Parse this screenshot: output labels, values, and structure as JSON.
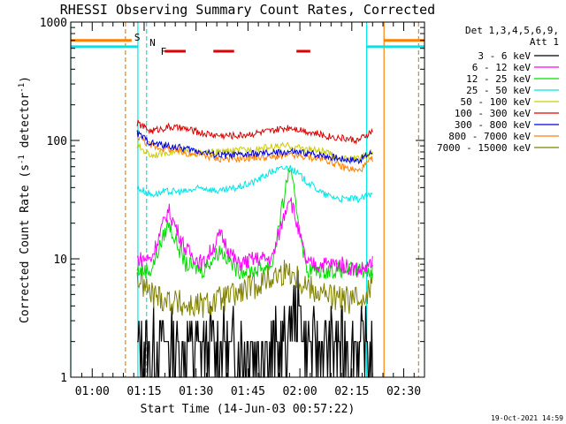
{
  "chart_data": {
    "type": "line",
    "title": "RHESSI Observing Summary Count Rates, Corrected",
    "xlabel": "Start Time (14-Jun-03 00:57:22)",
    "ylabel": "Corrected Count Rate (s",
    "ylabel_sup1": "-1",
    "ylabel_mid": " detector",
    "ylabel_sup2": "-1",
    "ylabel_end": ")",
    "y_scale": "log",
    "ylim": [
      1,
      1000
    ],
    "xlim_minutes_after_0057": [
      -3.2,
      99
    ],
    "x_tick_labels": [
      "01:00",
      "01:15",
      "01:30",
      "01:45",
      "02:00",
      "02:15",
      "02:30"
    ],
    "x_tick_minutes": [
      3,
      18,
      33,
      48,
      63,
      78,
      93
    ],
    "y_tick_labels": [
      "1",
      "10",
      "100",
      "1000"
    ],
    "y_tick_values": [
      1,
      10,
      100,
      1000
    ],
    "legend_title": [
      "Det 1,3,4,5,6,9,",
      "Att 1"
    ],
    "legend_placement": "right",
    "series": [
      {
        "name": "3 - 6 keV",
        "color": "#000000",
        "profile": "low"
      },
      {
        "name": "6 - 12 keV",
        "color": "#ff00ff",
        "profile": "flare"
      },
      {
        "name": "12 - 25 keV",
        "color": "#00dd00",
        "profile": "flare"
      },
      {
        "name": "25 - 50 keV",
        "color": "#00e5e5",
        "profile": "hump"
      },
      {
        "name": "50 - 100 keV",
        "color": "#cccc00",
        "profile": "flat"
      },
      {
        "name": "100 - 300 keV",
        "color": "#e00000",
        "profile": "flat"
      },
      {
        "name": "300 - 800 keV",
        "color": "#0000e0",
        "profile": "flat"
      },
      {
        "name": "800 - 7000 keV",
        "color": "#ff8000",
        "profile": "flat"
      },
      {
        "name": "7000 - 15000 keV",
        "color": "#808000",
        "profile": "steps"
      }
    ],
    "series_values": {
      "t_minutes": [
        16,
        20,
        25,
        30,
        35,
        40,
        45,
        50,
        55,
        60,
        65,
        70,
        75,
        80,
        84
      ],
      "3 - 6 keV": [
        2,
        2,
        2,
        1.5,
        2,
        2,
        2,
        2,
        3,
        4,
        3,
        2,
        2,
        2,
        2
      ],
      "6 - 12 keV": [
        10,
        10,
        26,
        12,
        9,
        16,
        9,
        10,
        10,
        35,
        9,
        9,
        9,
        8,
        9
      ],
      "12 - 25 keV": [
        8,
        8,
        20,
        9,
        8,
        12,
        8,
        8,
        9,
        60,
        8,
        8,
        8,
        8,
        8
      ],
      "25 - 50 keV": [
        40,
        35,
        37,
        37,
        40,
        37,
        40,
        45,
        55,
        60,
        45,
        35,
        32,
        32,
        35
      ],
      "50 - 100 keV": [
        90,
        75,
        80,
        80,
        78,
        80,
        82,
        85,
        88,
        90,
        85,
        80,
        70,
        70,
        80
      ],
      "100 - 300 keV": [
        140,
        120,
        130,
        125,
        115,
        110,
        110,
        115,
        120,
        130,
        120,
        110,
        105,
        100,
        120
      ],
      "300 - 800 keV": [
        115,
        95,
        90,
        85,
        80,
        75,
        75,
        77,
        78,
        80,
        78,
        75,
        70,
        68,
        80
      ],
      "800 - 7000 keV": [
        110,
        90,
        85,
        78,
        75,
        70,
        70,
        72,
        72,
        75,
        72,
        70,
        60,
        55,
        70
      ],
      "7000 - 15000 keV": [
        7,
        5,
        4.5,
        4,
        4,
        4.5,
        5,
        6,
        7,
        8,
        6,
        5,
        4.5,
        4.5,
        6
      ]
    },
    "attenuator_bars_top": {
      "color": "#ff8000",
      "y": 700,
      "segments_minutes": [
        [
          -3.2,
          14.4
        ],
        [
          87.3,
          99
        ]
      ]
    },
    "night_bars_top": {
      "color": "#00e5e5",
      "y": 620,
      "segments_minutes": [
        [
          -3.2,
          16.2
        ],
        [
          82.3,
          99
        ]
      ]
    },
    "flare_flag_segments_minutes": [
      [
        24,
        30
      ],
      [
        38,
        44
      ],
      [
        62,
        66
      ]
    ],
    "markers": [
      {
        "label": "S",
        "color": "#ff8000",
        "minute": 14.4
      },
      {
        "label": "N",
        "color": "#00e5e5",
        "minute": 18.8
      },
      {
        "label": "F",
        "color": "#e00000",
        "minute": 22.0
      }
    ],
    "vlines": [
      {
        "minute": -3.2,
        "color": "#00e5e5",
        "style": "solid"
      },
      {
        "minute": 12.6,
        "color": "#ff8000",
        "style": "dashed"
      },
      {
        "minute": 16.2,
        "color": "#00e5e5",
        "style": "solid"
      },
      {
        "minute": 18.7,
        "color": "#00e5e5",
        "style": "dashed"
      },
      {
        "minute": 82.3,
        "color": "#00e5e5",
        "style": "solid"
      },
      {
        "minute": 87.3,
        "color": "#ff8000",
        "style": "solid"
      },
      {
        "minute": 97.3,
        "color": "#ff8000",
        "style": "dashed"
      }
    ],
    "footer_timestamp": "19-Oct-2021 14:59"
  }
}
